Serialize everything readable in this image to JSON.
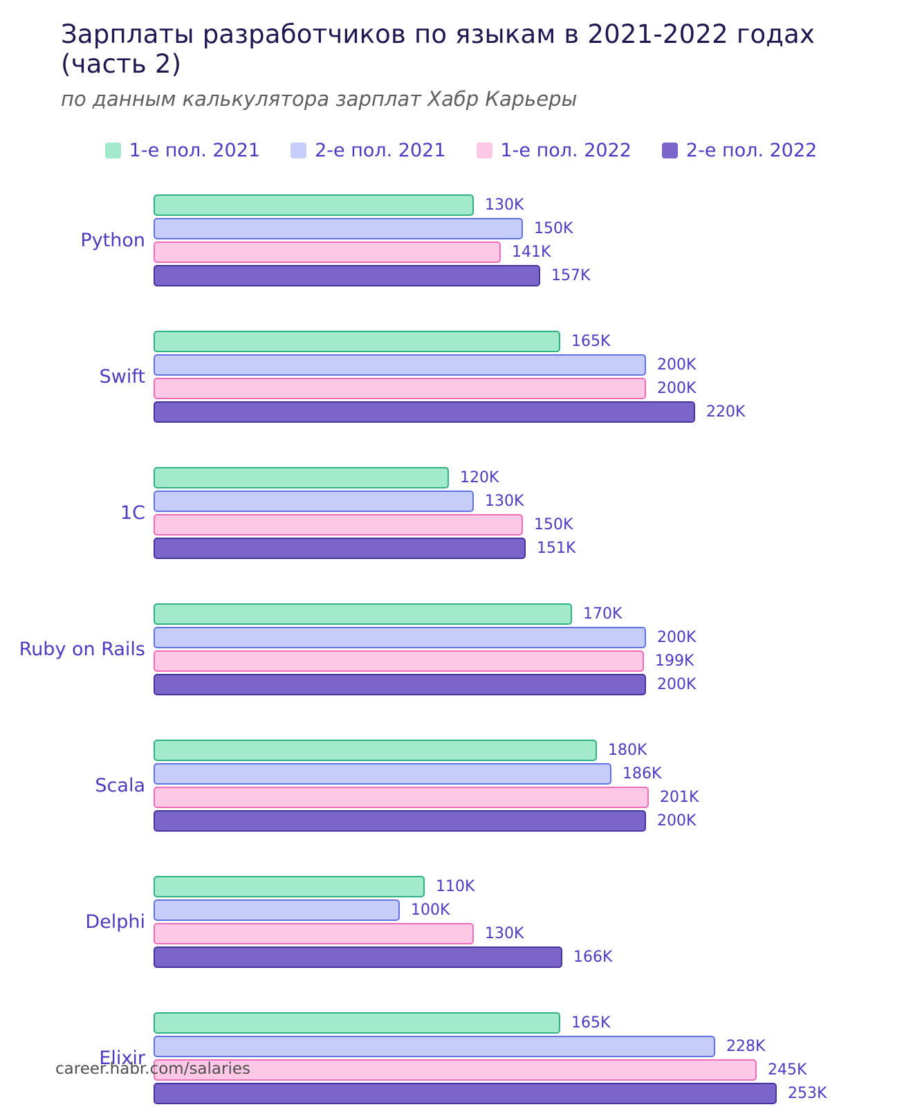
{
  "title": "Зарплаты разработчиков по языкам в 2021-2022 годах (часть 2)",
  "subtitle": "по данным калькулятора зарплат Хабр Карьеры",
  "footer": "career.habr.com/salaries",
  "chart_data": {
    "type": "bar",
    "orientation": "horizontal",
    "title": "Зарплаты разработчиков по языкам в 2021-2022 годах (часть 2)",
    "subtitle": "по данным калькулятора зарплат Хабр Карьеры",
    "categories": [
      "Python",
      "Swift",
      "1C",
      "Ruby on Rails",
      "Scala",
      "Delphi",
      "Elixir"
    ],
    "series": [
      {
        "name": "1-е пол. 2021",
        "fill": "#a3e9cb",
        "border": "#2eb183",
        "values": [
          130,
          165,
          120,
          170,
          180,
          110,
          165
        ]
      },
      {
        "name": "2-е пол. 2021",
        "fill": "#c6cdf9",
        "border": "#6272e2",
        "values": [
          150,
          200,
          130,
          200,
          186,
          100,
          228
        ]
      },
      {
        "name": "1-е пол. 2022",
        "fill": "#fdc8e6",
        "border": "#ef6cb8",
        "values": [
          141,
          200,
          150,
          199,
          201,
          130,
          245
        ]
      },
      {
        "name": "2-е пол. 2022",
        "fill": "#7b65cb",
        "border": "#46349e",
        "values": [
          157,
          220,
          151,
          200,
          200,
          166,
          253
        ]
      }
    ],
    "value_suffix": "K",
    "xlim": [
      0,
      262
    ],
    "legend_position": "top",
    "grid": false
  }
}
